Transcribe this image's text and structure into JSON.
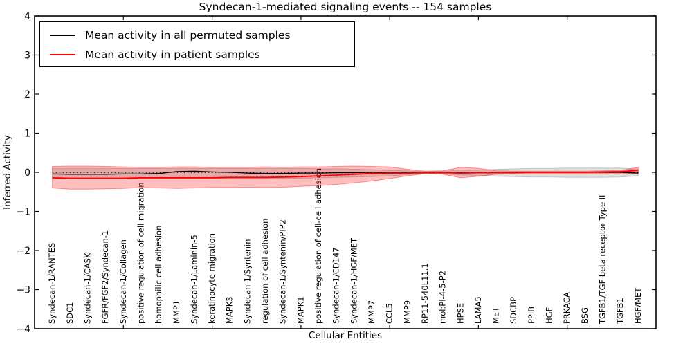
{
  "title": "Syndecan-1-mediated signaling events -- 154 samples",
  "legend": {
    "items": [
      {
        "label": "Mean activity in all permuted samples",
        "color": "#000000"
      },
      {
        "label": "Mean activity in patient samples",
        "color": "#ff0000"
      }
    ]
  },
  "axes": {
    "ylabel": "Inferred Activity",
    "xlabel": "Cellular Entities",
    "ylim": [
      -4,
      4
    ],
    "yticks": [
      {
        "value": 4,
        "label": "4"
      },
      {
        "value": 3,
        "label": "3"
      },
      {
        "value": 2,
        "label": "2"
      },
      {
        "value": 1,
        "label": "1"
      },
      {
        "value": 0,
        "label": "0"
      },
      {
        "value": -1,
        "label": "−1"
      },
      {
        "value": -2,
        "label": "−2"
      },
      {
        "value": -3,
        "label": "−3"
      },
      {
        "value": -4,
        "label": "−4"
      }
    ]
  },
  "chart_data": {
    "type": "line",
    "title": "Syndecan-1-mediated signaling events -- 154 samples",
    "xlabel": "Cellular Entities",
    "ylabel": "Inferred Activity",
    "ylim": [
      -4,
      4
    ],
    "grid": false,
    "legend_position": "upper left",
    "zero_reference_line": 0,
    "x_major_ticks": [
      5,
      10,
      15,
      20,
      25,
      30
    ],
    "categories": [
      "Syndecan-1/RANTES",
      "SDC1",
      "Syndecan-1/CASK",
      "FGFR/FGF2/Syndecan-1",
      "Syndecan-1/Collagen",
      "positive regulation of cell migration",
      "homophilic cell adhesion",
      "MMP1",
      "Syndecan-1/Laminin-5",
      "keratinocyte migration",
      "MAPK3",
      "Syndecan-1/Syntenin",
      "regulation of cell adhesion",
      "Syndecan-1/Syntenin/PIP2",
      "MAPK1",
      "positive regulation of cell-cell adhesion",
      "Syndecan-1/CD147",
      "Syndecan-1/HGF/MET",
      "MMP7",
      "CCL5",
      "MMP9",
      "RP11-540L11.1",
      "mol:PI-4-5-P2",
      "HPSE",
      "LAMA5",
      "MET",
      "SDCBP",
      "PPIB",
      "HGF",
      "PRKACA",
      "BSG",
      "TGFB1/TGF beta receptor Type II",
      "TGFB1",
      "HGF/MET"
    ],
    "series": [
      {
        "id": "permuted-mean-line",
        "name": "Mean activity in all permuted samples",
        "color": "#000000",
        "values": [
          -0.04,
          -0.05,
          -0.05,
          -0.05,
          -0.04,
          -0.04,
          -0.03,
          0.02,
          0.03,
          0.01,
          0.0,
          -0.02,
          -0.03,
          -0.03,
          -0.02,
          -0.02,
          -0.01,
          -0.01,
          0.0,
          0.0,
          0.0,
          0.0,
          0.0,
          0.0,
          0.0,
          0.0,
          0.0,
          0.0,
          0.0,
          0.0,
          0.0,
          0.0,
          0.0,
          -0.02
        ]
      },
      {
        "id": "patient-mean-line",
        "name": "Mean activity in patient samples",
        "color": "#ff0000",
        "values": [
          -0.14,
          -0.15,
          -0.15,
          -0.15,
          -0.15,
          -0.14,
          -0.14,
          -0.14,
          -0.14,
          -0.14,
          -0.13,
          -0.13,
          -0.13,
          -0.12,
          -0.11,
          -0.09,
          -0.07,
          -0.05,
          -0.03,
          -0.02,
          -0.02,
          -0.01,
          -0.01,
          -0.02,
          -0.01,
          -0.01,
          -0.01,
          0.0,
          0.0,
          0.0,
          0.0,
          0.01,
          0.02,
          0.05
        ]
      }
    ],
    "bands": [
      {
        "name": "permuted-std-band",
        "fill": "rgba(0,0,0,0.12)",
        "edge": "rgba(0,0,0,0.18)",
        "upper": [
          0.1,
          0.1,
          0.1,
          0.1,
          0.1,
          0.1,
          0.1,
          0.1,
          0.1,
          0.1,
          0.1,
          0.1,
          0.1,
          0.1,
          0.1,
          0.09,
          0.09,
          0.08,
          0.07,
          0.05,
          0.04,
          0.02,
          0.03,
          0.05,
          0.06,
          0.08,
          0.09,
          0.1,
          0.1,
          0.11,
          0.11,
          0.11,
          0.11,
          0.08
        ],
        "lower": [
          -0.16,
          -0.16,
          -0.16,
          -0.16,
          -0.16,
          -0.16,
          -0.16,
          -0.16,
          -0.16,
          -0.16,
          -0.16,
          -0.16,
          -0.16,
          -0.15,
          -0.15,
          -0.14,
          -0.13,
          -0.12,
          -0.11,
          -0.09,
          -0.06,
          -0.02,
          -0.04,
          -0.07,
          -0.08,
          -0.1,
          -0.11,
          -0.12,
          -0.12,
          -0.13,
          -0.13,
          -0.13,
          -0.12,
          -0.09
        ]
      },
      {
        "name": "patient-std-band",
        "fill": "rgba(255,0,0,0.25)",
        "edge": "rgba(255,0,0,0.40)",
        "upper": [
          0.15,
          0.16,
          0.16,
          0.15,
          0.14,
          0.13,
          0.13,
          0.14,
          0.14,
          0.13,
          0.13,
          0.13,
          0.14,
          0.13,
          0.14,
          0.14,
          0.15,
          0.16,
          0.15,
          0.14,
          0.08,
          0.03,
          0.04,
          0.13,
          0.1,
          0.04,
          0.03,
          0.03,
          0.03,
          0.03,
          0.03,
          0.04,
          0.05,
          0.13
        ],
        "lower": [
          -0.4,
          -0.43,
          -0.43,
          -0.42,
          -0.41,
          -0.39,
          -0.4,
          -0.41,
          -0.4,
          -0.39,
          -0.39,
          -0.38,
          -0.39,
          -0.38,
          -0.36,
          -0.34,
          -0.31,
          -0.27,
          -0.22,
          -0.16,
          -0.09,
          -0.03,
          -0.05,
          -0.14,
          -0.1,
          -0.05,
          -0.04,
          -0.04,
          -0.04,
          -0.04,
          -0.04,
          -0.04,
          -0.04,
          -0.03
        ]
      }
    ]
  }
}
